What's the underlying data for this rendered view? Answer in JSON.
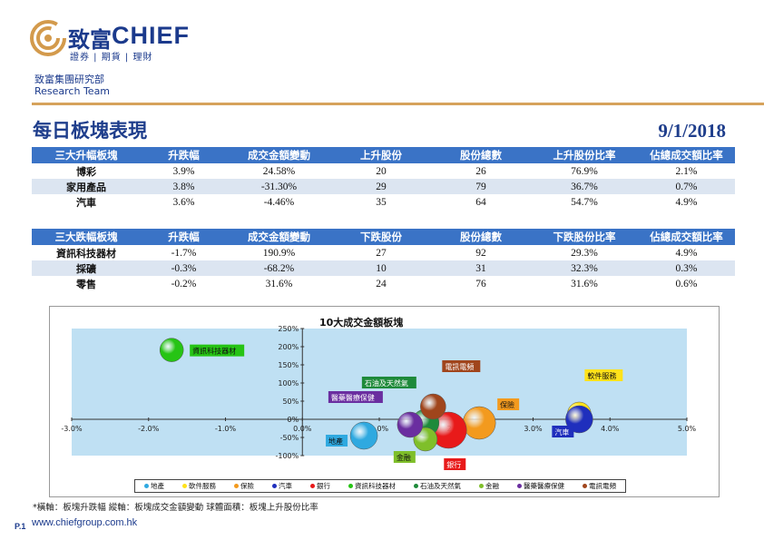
{
  "brand": {
    "logo_cn": "致富",
    "logo_en": "CHIEF",
    "logo_sub": "證券 | 期貨 | 理財",
    "dept_cn": "致富集團研究部",
    "dept_en": "Research Team"
  },
  "title": "每日板塊表現",
  "date": "9/1/2018",
  "gainers": {
    "headers": [
      "三大升幅板塊",
      "升跌幅",
      "成交金額變動",
      "上升股份",
      "股份總數",
      "上升股份比率",
      "佔總成交額比率"
    ],
    "rows": [
      [
        "博彩",
        "3.9%",
        "24.58%",
        "20",
        "26",
        "76.9%",
        "2.1%"
      ],
      [
        "家用產品",
        "3.8%",
        "-31.30%",
        "29",
        "79",
        "36.7%",
        "0.7%"
      ],
      [
        "汽車",
        "3.6%",
        "-4.46%",
        "35",
        "64",
        "54.7%",
        "4.9%"
      ]
    ]
  },
  "losers": {
    "headers": [
      "三大跌幅板塊",
      "升跌幅",
      "成交金額變動",
      "下跌股份",
      "股份總數",
      "下跌股份比率",
      "佔總成交額比率"
    ],
    "rows": [
      [
        "資訊科技器材",
        "-1.7%",
        "190.9%",
        "27",
        "92",
        "29.3%",
        "4.9%"
      ],
      [
        "採礦",
        "-0.3%",
        "-68.2%",
        "10",
        "31",
        "32.3%",
        "0.3%"
      ],
      [
        "零售",
        "-0.2%",
        "31.6%",
        "24",
        "76",
        "31.6%",
        "0.6%"
      ]
    ]
  },
  "chart_data": {
    "type": "bubble",
    "title": "10大成交金額板塊",
    "xlim": [
      -3.0,
      5.0
    ],
    "ylim": [
      -100,
      250
    ],
    "x_ticks": [
      "-3.0%",
      "-2.0%",
      "-1.0%",
      "0.0%",
      "1.0%",
      "2.0%",
      "3.0%",
      "4.0%",
      "5.0%"
    ],
    "y_ticks": [
      "250%",
      "200%",
      "150%",
      "100%",
      "50%",
      "0%",
      "-50%",
      "-100%"
    ],
    "series": [
      {
        "name": "地產",
        "x": 0.8,
        "y": -45,
        "r": 15,
        "color": "#2fa9e0"
      },
      {
        "name": "軟件服務",
        "x": 3.6,
        "y": 15,
        "r": 13,
        "color": "#ffe21a"
      },
      {
        "name": "保險",
        "x": 2.3,
        "y": -10,
        "r": 18,
        "color": "#f39a1e"
      },
      {
        "name": "汽車",
        "x": 3.6,
        "y": 0,
        "r": 15,
        "color": "#1f2fbd"
      },
      {
        "name": "銀行",
        "x": 1.9,
        "y": -30,
        "r": 20,
        "color": "#e81a1a"
      },
      {
        "name": "資訊科技器材",
        "x": -1.7,
        "y": 190.9,
        "r": 13,
        "color": "#26c414"
      },
      {
        "name": "石油及天然氣",
        "x": 1.6,
        "y": -10,
        "r": 15,
        "color": "#1e8a3a"
      },
      {
        "name": "金融",
        "x": 1.6,
        "y": -55,
        "r": 13,
        "color": "#7fbf2a"
      },
      {
        "name": "醫藥醫療保健",
        "x": 1.4,
        "y": -15,
        "r": 14,
        "color": "#6a2ea0"
      },
      {
        "name": "電訊電頻",
        "x": 1.7,
        "y": 35,
        "r": 14,
        "color": "#a0451c"
      }
    ],
    "footnote": "*橫軸：板塊升跌幅        縱軸：板塊成交金額變動        球體面積：板塊上升股份比率"
  },
  "footer": {
    "url": "www.chiefgroup.com.hk",
    "page": "P.1"
  }
}
